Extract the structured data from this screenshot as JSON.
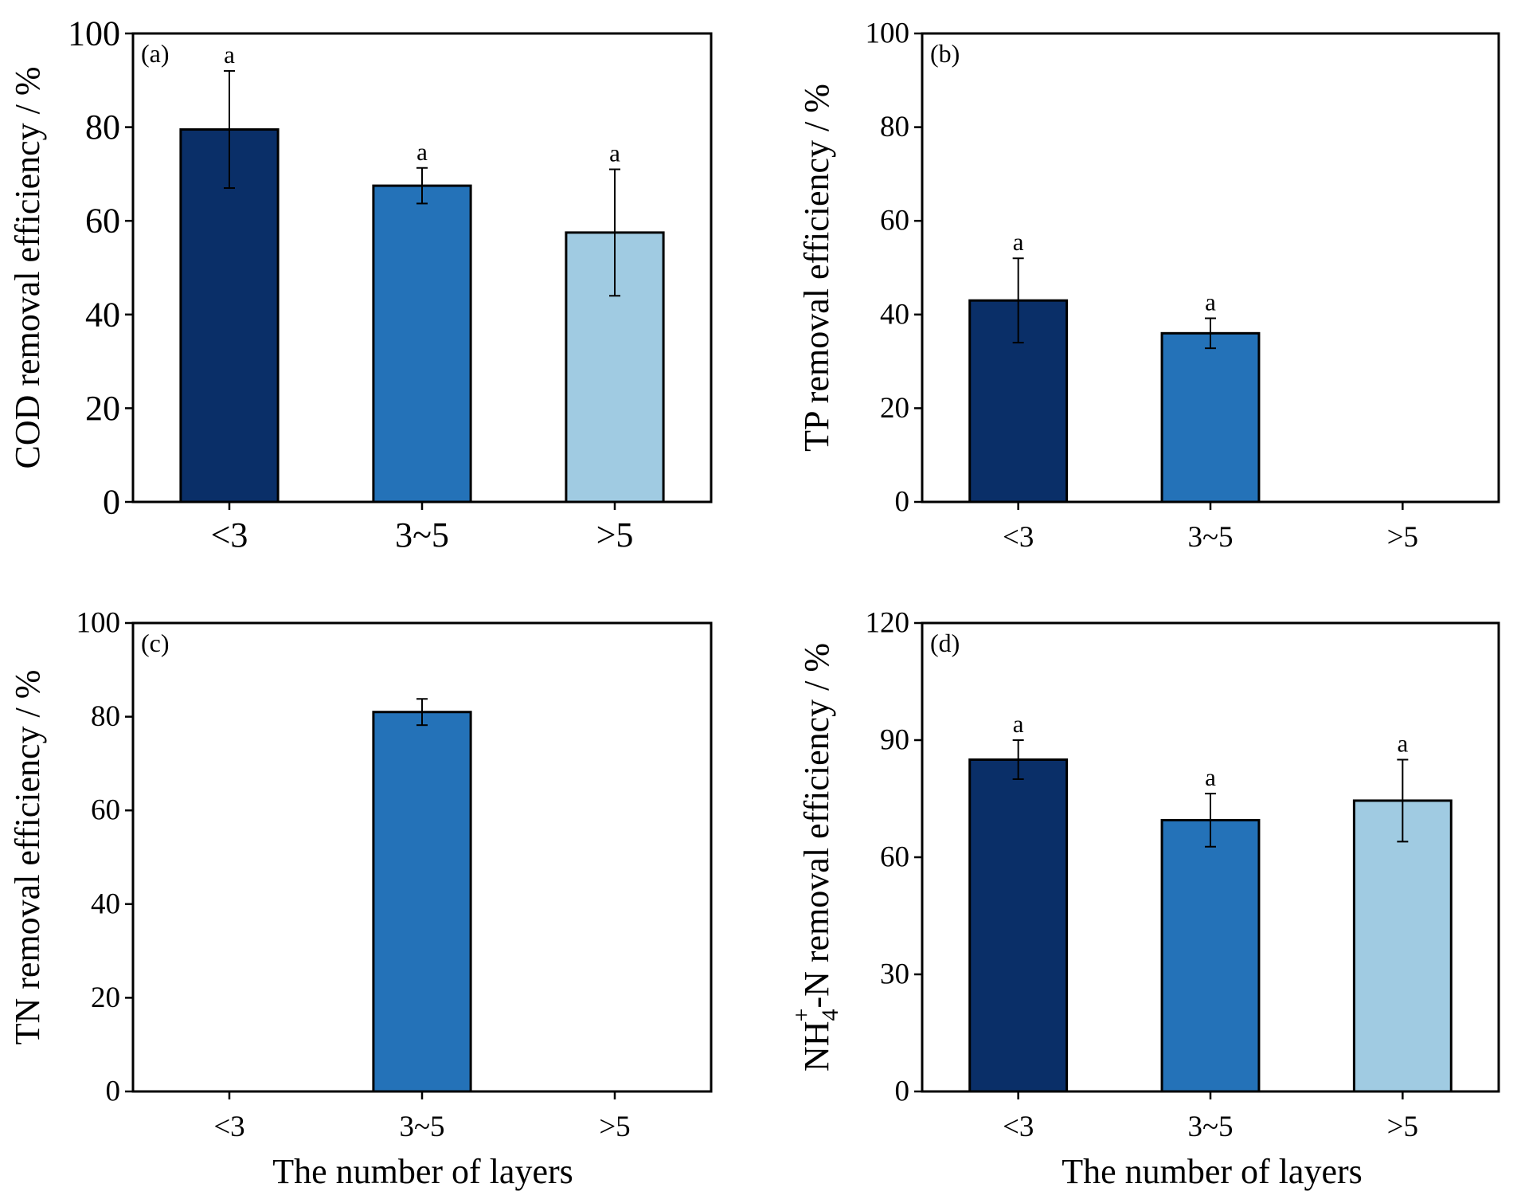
{
  "figure": {
    "xlabel_bottom_left": "The number of layers",
    "xlabel_bottom_right": "The number of layers"
  },
  "chart_data": [
    {
      "panel": "(a)",
      "type": "bar",
      "categories": [
        "<3",
        "3~5",
        ">5"
      ],
      "values": [
        79.5,
        67.5,
        57.5
      ],
      "errors": [
        12.5,
        3.8,
        13.5
      ],
      "significance": [
        "a",
        "a",
        "a"
      ],
      "colors": [
        "#0a2f68",
        "#2472b8",
        "#a0cbe2"
      ],
      "ylabel": "COD removal efficiency / %",
      "xlabel": "",
      "ylim": [
        0,
        100
      ],
      "yticks": [
        0,
        20,
        40,
        60,
        80,
        100
      ]
    },
    {
      "panel": "(b)",
      "type": "bar",
      "categories": [
        "<3",
        "3~5",
        ">5"
      ],
      "values": [
        43,
        36,
        null
      ],
      "errors": [
        9,
        3.2,
        null
      ],
      "significance": [
        "a",
        "a",
        ""
      ],
      "colors": [
        "#0a2f68",
        "#2472b8",
        "#a0cbe2"
      ],
      "ylabel": "TP removal efficiency / %",
      "xlabel": "",
      "ylim": [
        0,
        100
      ],
      "yticks": [
        0,
        20,
        40,
        60,
        80,
        100
      ]
    },
    {
      "panel": "(c)",
      "type": "bar",
      "categories": [
        "<3",
        "3~5",
        ">5"
      ],
      "values": [
        null,
        81,
        null
      ],
      "errors": [
        null,
        2.8,
        null
      ],
      "significance": [
        "",
        "",
        ""
      ],
      "colors": [
        "#0a2f68",
        "#2472b8",
        "#a0cbe2"
      ],
      "ylabel": "TN removal efficiency / %",
      "xlabel": "The number of layers",
      "ylim": [
        0,
        100
      ],
      "yticks": [
        0,
        20,
        40,
        60,
        80,
        100
      ]
    },
    {
      "panel": "(d)",
      "type": "bar",
      "categories": [
        "<3",
        "3~5",
        ">5"
      ],
      "values": [
        85,
        69.5,
        74.5
      ],
      "errors": [
        5,
        6.8,
        10.5
      ],
      "significance": [
        "a",
        "a",
        "a"
      ],
      "colors": [
        "#0a2f68",
        "#2472b8",
        "#a0cbe2"
      ],
      "ylabel": "NH4+-N removal efficiency / %",
      "ylabel_parts": {
        "pre": "NH",
        "sub": "4",
        "sup": "+",
        "post": "-N removal efficiency / %"
      },
      "xlabel": "The number of layers",
      "ylim": [
        0,
        120
      ],
      "yticks": [
        0,
        30,
        60,
        90,
        120
      ]
    }
  ]
}
